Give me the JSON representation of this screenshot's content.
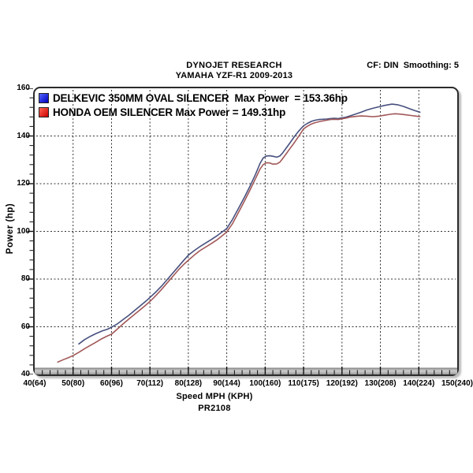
{
  "header": {
    "title_line1": "DYNOJET RESEARCH",
    "title_line2": "YAMAHA YZF-R1 2009-2013",
    "right_info": "CF: DIN  Smoothing: 5"
  },
  "footer": {
    "x_axis_title": "Speed MPH (KPH)",
    "run_id": "PR2108"
  },
  "colors": {
    "grid": "#333333",
    "frame_border": "#2b2b2b",
    "tick": "#111111",
    "band_light": "#cccccc",
    "band_dark": "#9a9a9a",
    "text": "#000000"
  },
  "chart_data": {
    "type": "line",
    "title": "DYNOJET RESEARCH",
    "subtitle": "YAMAHA YZF-R1 2009-2013",
    "xlabel": "Speed MPH (KPH)",
    "ylabel": "Power (hp)",
    "xlim": [
      40,
      150
    ],
    "ylim": [
      40,
      160
    ],
    "x_major_ticks": [
      40,
      50,
      60,
      70,
      80,
      90,
      100,
      110,
      120,
      130,
      140,
      150
    ],
    "x_tick_labels": [
      "40(64)",
      "50(80)",
      "60(96)",
      "70(112)",
      "80(128)",
      "90(144)",
      "100(160)",
      "110(175)",
      "120(192)",
      "130(208)",
      "140(224)",
      "150(240)"
    ],
    "x_minor_step": 2,
    "y_major_ticks": [
      40,
      60,
      80,
      100,
      120,
      140,
      160
    ],
    "y_tick_labels": [
      "40",
      "60",
      "80",
      "100",
      "120",
      "140",
      "160"
    ],
    "y_minor_step": 4,
    "grid": "dashed major gridlines, both axes",
    "legend_position": "top-left inside plot",
    "series": [
      {
        "name": "DELKEVIC 350MM OVAL SILENCER",
        "legend_label": "DELKEVIC 350MM OVAL SILENCER  Max Power  = 153.36hp",
        "max_power_hp": 153.36,
        "color": "#47507e",
        "swatch_light": "#5566ff",
        "swatch_dark": "#0000bb",
        "points": [
          [
            51.5,
            52.8
          ],
          [
            53,
            54.6
          ],
          [
            54.5,
            56.0
          ],
          [
            56,
            57.2
          ],
          [
            57.5,
            58.2
          ],
          [
            59,
            59.0
          ],
          [
            60,
            59.8
          ],
          [
            61.5,
            61.2
          ],
          [
            63,
            63.0
          ],
          [
            64.5,
            64.8
          ],
          [
            66,
            66.8
          ],
          [
            67.5,
            68.8
          ],
          [
            69,
            70.8
          ],
          [
            70,
            72.3
          ],
          [
            71.5,
            74.5
          ],
          [
            73,
            77.0
          ],
          [
            74.5,
            79.8
          ],
          [
            76,
            82.6
          ],
          [
            77.5,
            85.4
          ],
          [
            79,
            88.2
          ],
          [
            80,
            90.0
          ],
          [
            81.5,
            91.9
          ],
          [
            83,
            93.6
          ],
          [
            84.5,
            95.1
          ],
          [
            86,
            96.6
          ],
          [
            87.5,
            98.2
          ],
          [
            89,
            100.0
          ],
          [
            90,
            101.2
          ],
          [
            91.5,
            105.0
          ],
          [
            93,
            109.5
          ],
          [
            94.5,
            114.0
          ],
          [
            96,
            118.8
          ],
          [
            97.5,
            124.0
          ],
          [
            98.7,
            128.6
          ],
          [
            99.5,
            130.8
          ],
          [
            100.3,
            131.6
          ],
          [
            101.2,
            131.7
          ],
          [
            102,
            131.5
          ],
          [
            103,
            131.1
          ],
          [
            103.8,
            131.6
          ],
          [
            104.5,
            132.8
          ],
          [
            105.5,
            135.0
          ],
          [
            106.5,
            137.2
          ],
          [
            107.5,
            139.5
          ],
          [
            108.7,
            142.0
          ],
          [
            110,
            144.3
          ],
          [
            111,
            145.3
          ],
          [
            112,
            146.1
          ],
          [
            113,
            146.6
          ],
          [
            114,
            146.9
          ],
          [
            115,
            147.0
          ],
          [
            116,
            147.1
          ],
          [
            117,
            147.3
          ],
          [
            118,
            147.4
          ],
          [
            119,
            147.3
          ],
          [
            120,
            147.6
          ],
          [
            121,
            147.9
          ],
          [
            122,
            148.4
          ],
          [
            123.5,
            149.2
          ],
          [
            125,
            150.0
          ],
          [
            126.5,
            150.9
          ],
          [
            128,
            151.6
          ],
          [
            129.5,
            152.2
          ],
          [
            131,
            152.8
          ],
          [
            133,
            153.36
          ],
          [
            134.5,
            153.1
          ],
          [
            136,
            152.4
          ],
          [
            137.5,
            151.5
          ],
          [
            139,
            150.6
          ],
          [
            140.3,
            150.0
          ]
        ]
      },
      {
        "name": "HONDA OEM SILENCER",
        "legend_label": "HONDA OEM SILENCER Max Power = 149.31hp",
        "max_power_hp": 149.31,
        "color": "#a25757",
        "swatch_light": "#ff6655",
        "swatch_dark": "#cc0000",
        "points": [
          [
            46,
            45.2
          ],
          [
            47.5,
            46.2
          ],
          [
            49,
            47.2
          ],
          [
            50,
            47.9
          ],
          [
            51.5,
            49.3
          ],
          [
            53,
            50.8
          ],
          [
            54.5,
            52.2
          ],
          [
            56,
            53.6
          ],
          [
            57.5,
            55.0
          ],
          [
            59,
            56.2
          ],
          [
            60,
            56.9
          ],
          [
            61.5,
            59.0
          ],
          [
            63,
            61.2
          ],
          [
            64.5,
            63.2
          ],
          [
            66,
            65.2
          ],
          [
            67.5,
            67.2
          ],
          [
            69,
            69.2
          ],
          [
            70,
            70.6
          ],
          [
            71.5,
            73.0
          ],
          [
            73,
            75.6
          ],
          [
            74.5,
            78.4
          ],
          [
            76,
            81.2
          ],
          [
            77.5,
            84.0
          ],
          [
            79,
            86.4
          ],
          [
            80,
            87.9
          ],
          [
            81.5,
            90.0
          ],
          [
            83,
            91.9
          ],
          [
            84.5,
            93.4
          ],
          [
            86,
            94.9
          ],
          [
            87.5,
            96.5
          ],
          [
            89,
            98.4
          ],
          [
            90,
            99.8
          ],
          [
            91.5,
            103.2
          ],
          [
            93,
            107.8
          ],
          [
            94.5,
            112.4
          ],
          [
            96,
            117.2
          ],
          [
            97.5,
            122.2
          ],
          [
            98.7,
            126.2
          ],
          [
            99.5,
            128.0
          ],
          [
            100.3,
            128.8
          ],
          [
            101.2,
            128.7
          ],
          [
            102,
            128.2
          ],
          [
            103,
            128.3
          ],
          [
            103.8,
            129.0
          ],
          [
            104.5,
            130.4
          ],
          [
            105.5,
            132.6
          ],
          [
            106.5,
            134.8
          ],
          [
            107.5,
            137.0
          ],
          [
            108.7,
            139.8
          ],
          [
            110,
            143.0
          ],
          [
            111,
            144.1
          ],
          [
            112,
            145.0
          ],
          [
            113,
            145.6
          ],
          [
            114,
            146.0
          ],
          [
            115,
            146.3
          ],
          [
            116,
            146.6
          ],
          [
            117,
            146.9
          ],
          [
            118,
            147.0
          ],
          [
            119,
            146.9
          ],
          [
            120,
            147.2
          ],
          [
            121,
            147.5
          ],
          [
            122,
            147.9
          ],
          [
            123.5,
            148.2
          ],
          [
            125,
            148.4
          ],
          [
            126.5,
            148.3
          ],
          [
            128,
            148.1
          ],
          [
            129.5,
            148.3
          ],
          [
            131,
            148.7
          ],
          [
            132.5,
            149.1
          ],
          [
            133.8,
            149.31
          ],
          [
            135,
            149.2
          ],
          [
            136.5,
            148.9
          ],
          [
            138,
            148.6
          ],
          [
            139.5,
            148.3
          ],
          [
            140.3,
            148.1
          ]
        ]
      }
    ]
  }
}
